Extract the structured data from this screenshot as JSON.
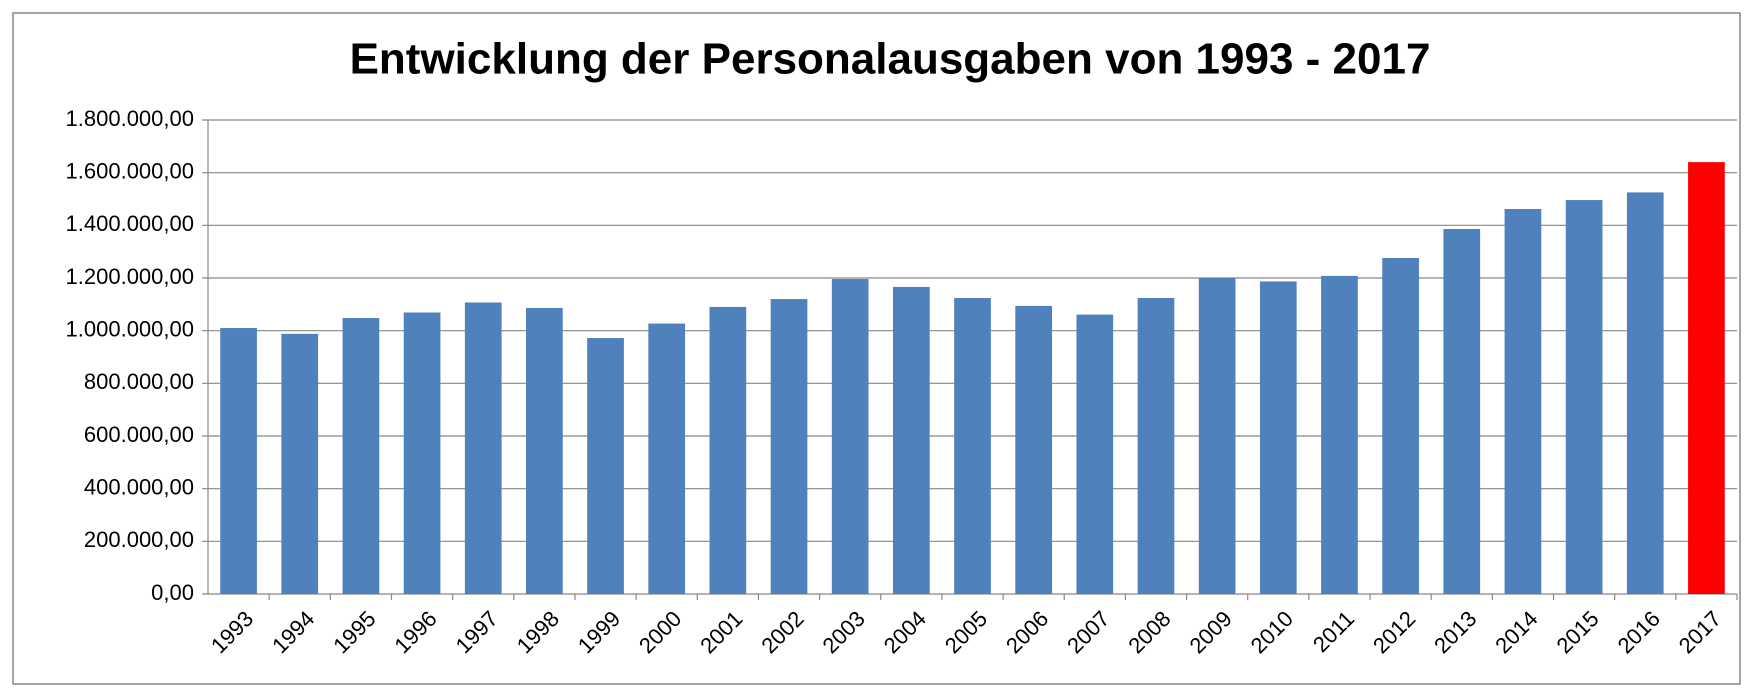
{
  "chart_data": {
    "type": "bar",
    "title": "Entwicklung der Personalausgaben von 1993 - 2017",
    "categories": [
      "1993",
      "1994",
      "1995",
      "1996",
      "1997",
      "1998",
      "1999",
      "2000",
      "2001",
      "2002",
      "2003",
      "2004",
      "2005",
      "2006",
      "2007",
      "2008",
      "2009",
      "2010",
      "2011",
      "2012",
      "2013",
      "2014",
      "2015",
      "2016",
      "2017"
    ],
    "values": [
      1010000,
      988000,
      1048000,
      1069000,
      1107000,
      1086000,
      972000,
      1027000,
      1090000,
      1120000,
      1196000,
      1166000,
      1124000,
      1094000,
      1061000,
      1124000,
      1200000,
      1187000,
      1208000,
      1276000,
      1386000,
      1462000,
      1496000,
      1525000,
      1640000
    ],
    "colors": [
      "#4f81bd",
      "#4f81bd",
      "#4f81bd",
      "#4f81bd",
      "#4f81bd",
      "#4f81bd",
      "#4f81bd",
      "#4f81bd",
      "#4f81bd",
      "#4f81bd",
      "#4f81bd",
      "#4f81bd",
      "#4f81bd",
      "#4f81bd",
      "#4f81bd",
      "#4f81bd",
      "#4f81bd",
      "#4f81bd",
      "#4f81bd",
      "#4f81bd",
      "#4f81bd",
      "#4f81bd",
      "#4f81bd",
      "#4f81bd",
      "#ff0000"
    ],
    "ylim": [
      0,
      1800000
    ],
    "yticks": [
      {
        "value": 0,
        "label": "0,00"
      },
      {
        "value": 200000,
        "label": "200.000,00"
      },
      {
        "value": 400000,
        "label": "400.000,00"
      },
      {
        "value": 600000,
        "label": "600.000,00"
      },
      {
        "value": 800000,
        "label": "800.000,00"
      },
      {
        "value": 1000000,
        "label": "1.000.000,00"
      },
      {
        "value": 1200000,
        "label": "1.200.000,00"
      },
      {
        "value": 1400000,
        "label": "1.400.000,00"
      },
      {
        "value": 1600000,
        "label": "1.600.000,00"
      },
      {
        "value": 1800000,
        "label": "1.800.000,00"
      }
    ],
    "grid": true
  }
}
